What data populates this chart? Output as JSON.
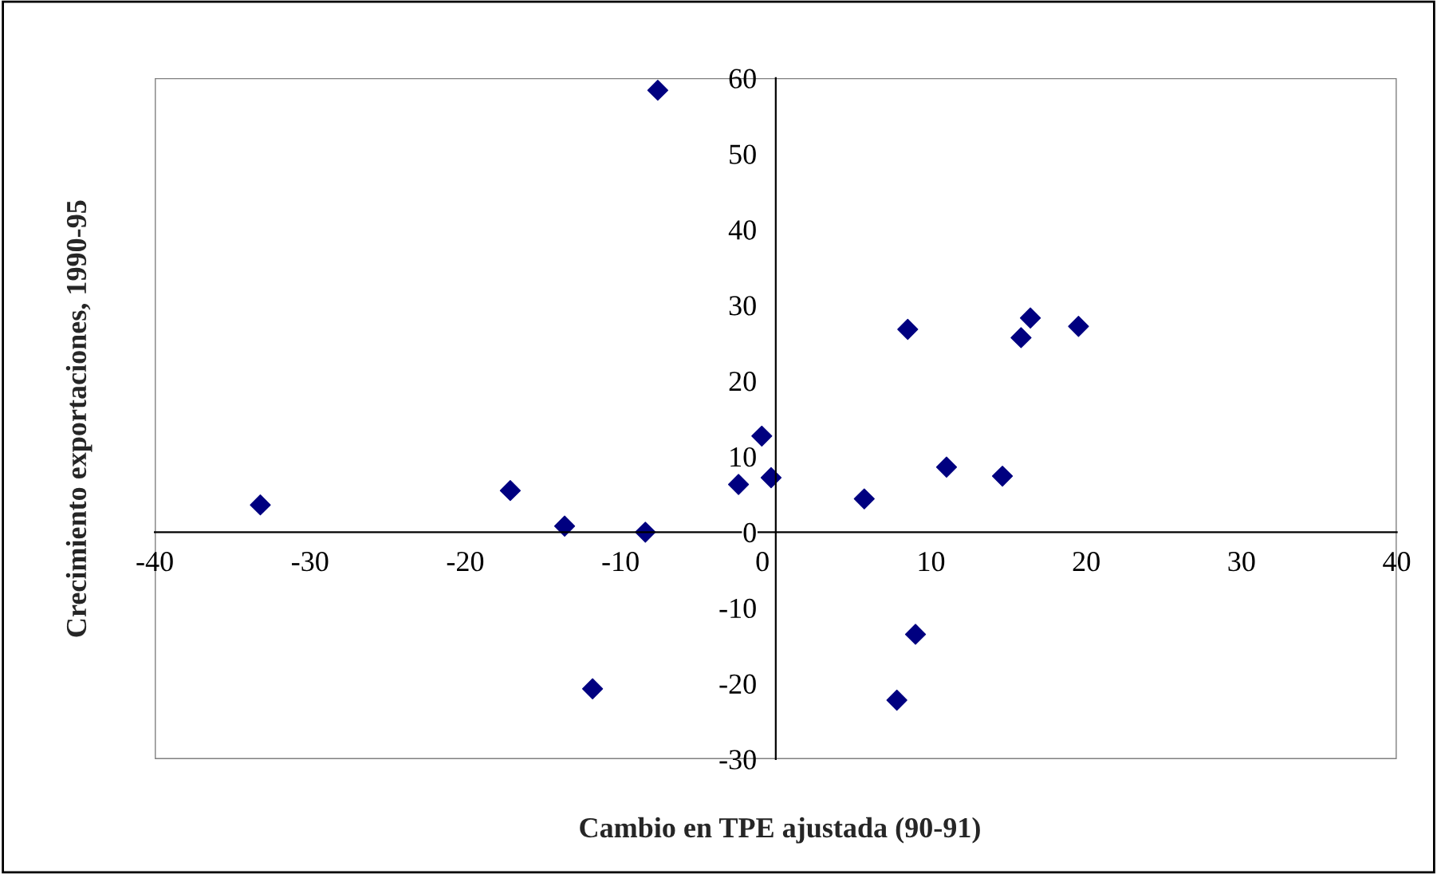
{
  "chart_data": {
    "type": "scatter",
    "xlabel": "Cambio en TPE ajustada (90-91)",
    "ylabel": "Crecimiento exportaciones, 1990-95",
    "x": [
      -33.2,
      -17.1,
      -13.6,
      -8.4,
      -7.6,
      -11.8,
      -2.4,
      -0.9,
      -0.3,
      5.7,
      8.5,
      11.0,
      14.6,
      15.8,
      16.4,
      19.5,
      9.0,
      7.8
    ],
    "series": [
      {
        "color": "#000080",
        "values": [
          3.6,
          5.5,
          0.8,
          0.0,
          58.4,
          -20.7,
          6.3,
          12.7,
          7.2,
          4.4,
          26.8,
          8.6,
          7.4,
          25.7,
          28.3,
          27.2,
          -13.5,
          -22.2
        ]
      }
    ],
    "xlim": [
      -40,
      40
    ],
    "xticks": [
      -40,
      -30,
      -20,
      -10,
      0,
      10,
      20,
      30,
      40
    ],
    "ylim": [
      -30,
      60
    ],
    "yticks": [
      -30,
      -20,
      -10,
      0,
      10,
      20,
      30,
      40,
      50,
      60
    ],
    "marker": "diamond",
    "grid": false,
    "legend": false
  }
}
